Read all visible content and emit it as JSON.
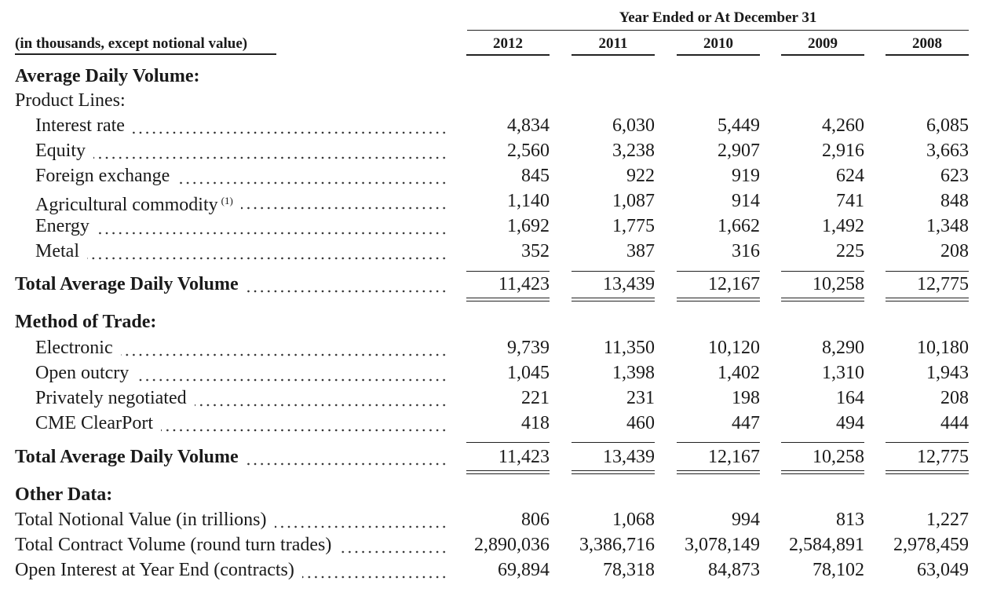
{
  "header": {
    "group_title": "Year Ended or At December 31",
    "units_note": "(in thousands, except notional value)",
    "years": [
      "2012",
      "2011",
      "2010",
      "2009",
      "2008"
    ]
  },
  "sections": [
    {
      "title": "Average Daily Volume:",
      "subtitle": "Product Lines:",
      "rows": [
        {
          "label": "Interest rate",
          "values": [
            "4,834",
            "6,030",
            "5,449",
            "4,260",
            "6,085"
          ]
        },
        {
          "label": "Equity",
          "values": [
            "2,560",
            "3,238",
            "2,907",
            "2,916",
            "3,663"
          ]
        },
        {
          "label": "Foreign exchange",
          "values": [
            "845",
            "922",
            "919",
            "624",
            "623"
          ]
        },
        {
          "label": "Agricultural commodity",
          "footnote": "(1)",
          "values": [
            "1,140",
            "1,087",
            "914",
            "741",
            "848"
          ]
        },
        {
          "label": "Energy",
          "values": [
            "1,692",
            "1,775",
            "1,662",
            "1,492",
            "1,348"
          ]
        },
        {
          "label": "Metal",
          "values": [
            "352",
            "387",
            "316",
            "225",
            "208"
          ]
        }
      ],
      "total": {
        "label": "Total Average Daily Volume",
        "values": [
          "11,423",
          "13,439",
          "12,167",
          "10,258",
          "12,775"
        ]
      }
    },
    {
      "title": "Method of Trade:",
      "rows": [
        {
          "label": "Electronic",
          "values": [
            "9,739",
            "11,350",
            "10,120",
            "8,290",
            "10,180"
          ]
        },
        {
          "label": "Open outcry",
          "values": [
            "1,045",
            "1,398",
            "1,402",
            "1,310",
            "1,943"
          ]
        },
        {
          "label": "Privately negotiated",
          "values": [
            "221",
            "231",
            "198",
            "164",
            "208"
          ]
        },
        {
          "label": "CME ClearPort",
          "values": [
            "418",
            "460",
            "447",
            "494",
            "444"
          ]
        }
      ],
      "total": {
        "label": "Total Average Daily Volume",
        "values": [
          "11,423",
          "13,439",
          "12,167",
          "10,258",
          "12,775"
        ]
      }
    },
    {
      "title": "Other Data:",
      "rows": [
        {
          "label": "Total Notional Value (in trillions)",
          "values": [
            "806",
            "1,068",
            "994",
            "813",
            "1,227"
          ]
        },
        {
          "label": "Total Contract Volume (round turn trades)",
          "values": [
            "2,890,036",
            "3,386,716",
            "3,078,149",
            "2,584,891",
            "2,978,459"
          ]
        },
        {
          "label": "Open Interest at Year End (contracts)",
          "values": [
            "69,894",
            "78,318",
            "84,873",
            "78,102",
            "63,049"
          ]
        }
      ]
    }
  ]
}
